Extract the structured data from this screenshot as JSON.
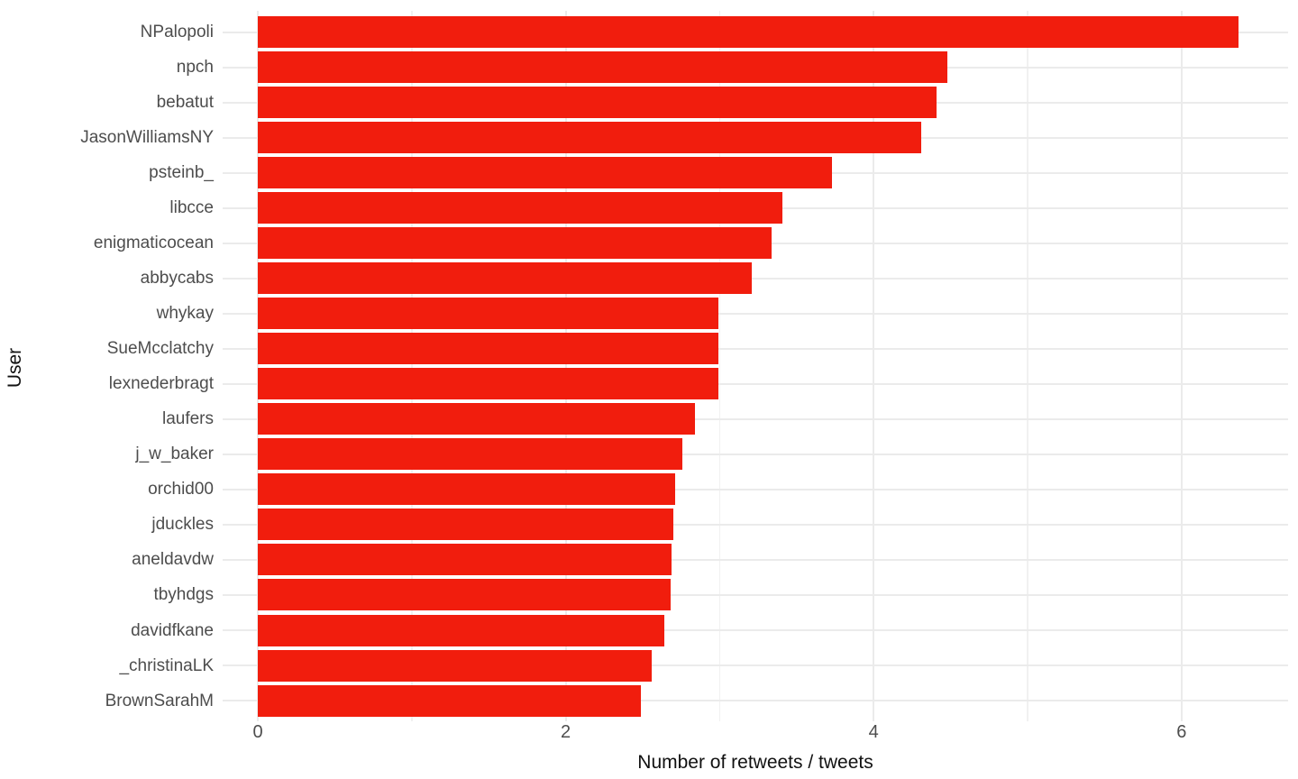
{
  "chart_data": {
    "type": "bar",
    "orientation": "horizontal",
    "title": "",
    "xlabel": "Number of retweets / tweets",
    "ylabel": "User",
    "categories": [
      "NPalopoli",
      "npch",
      "bebatut",
      "JasonWilliamsNY",
      "psteinb_",
      "libcce",
      "enigmaticocean",
      "abbycabs",
      "whykay",
      "SueMcclatchy",
      "lexnederbragt",
      "laufers",
      "j_w_baker",
      "orchid00",
      "jduckles",
      "aneldavdw",
      "tbyhdgs",
      "davidfkane",
      "_christinaLK",
      "BrownSarahM"
    ],
    "values": [
      6.37,
      4.48,
      4.41,
      4.31,
      3.73,
      3.41,
      3.34,
      3.21,
      2.99,
      2.99,
      2.99,
      2.84,
      2.76,
      2.71,
      2.7,
      2.69,
      2.68,
      2.64,
      2.56,
      2.49
    ],
    "x_major_ticks": [
      0,
      2,
      4,
      6
    ],
    "x_minor_ticks": [
      1,
      3,
      5
    ],
    "xlim": [
      -0.33,
      6.69
    ],
    "legend": "none",
    "grid": "on",
    "bar_color": "#f11d0d",
    "gridline_color": "#ebebeb",
    "background_color": "#ffffff",
    "tick_label_color": "#4d4d4d",
    "axis_title_color": "#111111"
  }
}
